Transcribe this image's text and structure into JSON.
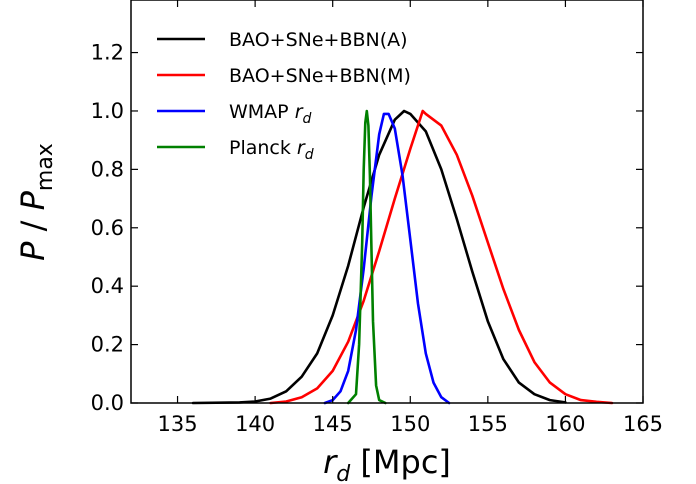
{
  "chart_data": {
    "type": "line",
    "xlabel": "r_d [Mpc]",
    "ylabel": "P / P_max",
    "xlim": [
      132,
      165
    ],
    "ylim": [
      0,
      1.38
    ],
    "x_ticks": [
      135,
      140,
      145,
      150,
      155,
      160,
      165
    ],
    "y_ticks": [
      0.0,
      0.2,
      0.4,
      0.6,
      0.8,
      1.0,
      1.2
    ],
    "grid": false,
    "legend_position": "top-left",
    "series": [
      {
        "name": "BAO+SNe+BBN(A)",
        "color": "#000000",
        "x": [
          136,
          139,
          140,
          141,
          142,
          143,
          144,
          145,
          146,
          147,
          148,
          149,
          149.6,
          150,
          151,
          152,
          153,
          154,
          155,
          156,
          157,
          158,
          159,
          160
        ],
        "y": [
          0.0,
          0.002,
          0.005,
          0.015,
          0.04,
          0.09,
          0.17,
          0.3,
          0.47,
          0.67,
          0.85,
          0.97,
          1.0,
          0.99,
          0.93,
          0.8,
          0.63,
          0.45,
          0.28,
          0.15,
          0.07,
          0.03,
          0.01,
          0.002
        ]
      },
      {
        "name": "BAO+SNe+BBN(M)",
        "color": "#ff0000",
        "x": [
          141,
          142,
          143,
          144,
          145,
          146,
          147,
          148,
          149,
          150,
          150.8,
          151,
          152,
          153,
          154,
          155,
          156,
          157,
          158,
          159,
          160,
          161,
          162,
          163
        ],
        "y": [
          0.0,
          0.005,
          0.02,
          0.05,
          0.11,
          0.21,
          0.35,
          0.52,
          0.7,
          0.87,
          1.0,
          0.99,
          0.95,
          0.85,
          0.71,
          0.55,
          0.39,
          0.25,
          0.14,
          0.07,
          0.03,
          0.01,
          0.004,
          0.0
        ]
      },
      {
        "name": "WMAP r_d",
        "color": "#0000ff",
        "x": [
          144.5,
          145,
          145.5,
          146,
          146.5,
          147,
          147.5,
          148,
          148.3,
          148.6,
          149,
          149.5,
          150,
          150.5,
          151,
          151.5,
          152,
          152.5
        ],
        "y": [
          0.0,
          0.01,
          0.04,
          0.11,
          0.25,
          0.46,
          0.71,
          0.92,
          0.99,
          0.99,
          0.94,
          0.78,
          0.56,
          0.34,
          0.17,
          0.07,
          0.02,
          0.0
        ]
      },
      {
        "name": "Planck r_d",
        "color": "#008000",
        "x": [
          146.0,
          146.5,
          146.7,
          146.9,
          147.0,
          147.1,
          147.2,
          147.3,
          147.4,
          147.5,
          147.6,
          147.8,
          148.0,
          148.4
        ],
        "y": [
          0.0,
          0.03,
          0.2,
          0.55,
          0.8,
          0.96,
          1.0,
          0.95,
          0.78,
          0.52,
          0.28,
          0.06,
          0.01,
          0.0
        ]
      }
    ]
  }
}
